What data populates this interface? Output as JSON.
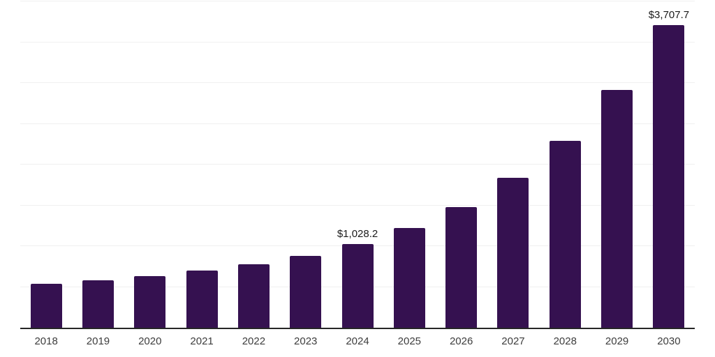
{
  "chart_data": {
    "type": "bar",
    "title": "",
    "xlabel": "",
    "ylabel": "",
    "categories": [
      "2018",
      "2019",
      "2020",
      "2021",
      "2022",
      "2023",
      "2024",
      "2025",
      "2026",
      "2027",
      "2028",
      "2029",
      "2030"
    ],
    "values": [
      540,
      580,
      635,
      700,
      780,
      880,
      1028.2,
      1220,
      1480,
      1835,
      2290,
      2915,
      3707.7
    ],
    "value_labels": {
      "2024": "$1,028.2",
      "2030": "$3,707.7"
    },
    "ylim": [
      0,
      4000
    ],
    "gridline_step": 500,
    "grid": "horizontal",
    "legend_position": "none",
    "colors": {
      "bar": "#351150",
      "axis_line": "#262626",
      "gridline": "#f0f0f0",
      "data_label": "#1a1a1a",
      "tick_label": "#3d3d3d",
      "background": "#ffffff"
    }
  }
}
